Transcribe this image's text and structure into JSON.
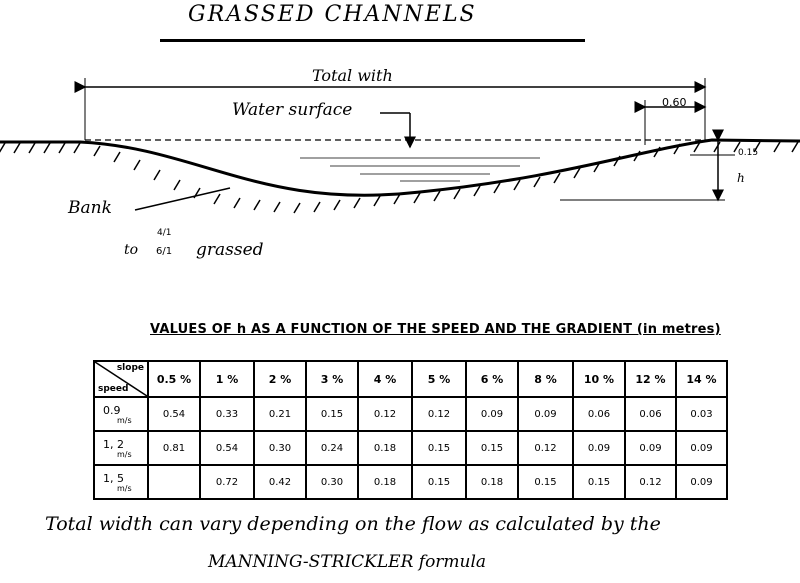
{
  "title": "GRASSED CHANNELS",
  "diagram": {
    "total_width_label": "Total with",
    "water_surface_label": "Water surface",
    "freeboard_label": "0.60",
    "freeboard_height_label": "0.15",
    "depth_label": "h",
    "bank_label": "Bank",
    "slope_top": "4/1",
    "slope_prefix": "to",
    "slope_bottom": "6/1",
    "slope_suffix": "grassed"
  },
  "table": {
    "heading": "VALUES OF h AS A FUNCTION OF THE SPEED AND THE GRADIENT (in metres)",
    "corner_slope": "slope",
    "corner_speed": "speed",
    "columns": [
      "0.5 %",
      "1 %",
      "2 %",
      "3 %",
      "4 %",
      "5 %",
      "6 %",
      "8 %",
      "10 %",
      "12 %",
      "14 %"
    ],
    "rows": [
      {
        "speed": "0.9",
        "unit": "m/s",
        "values": [
          "0.54",
          "0.33",
          "0.21",
          "0.15",
          "0.12",
          "0.12",
          "0.09",
          "0.09",
          "0.06",
          "0.06",
          "0.03"
        ]
      },
      {
        "speed": "1, 2",
        "unit": "m/s",
        "values": [
          "0.81",
          "0.54",
          "0.30",
          "0.24",
          "0.18",
          "0.15",
          "0.15",
          "0.12",
          "0.09",
          "0.09",
          "0.09"
        ]
      },
      {
        "speed": "1, 5",
        "unit": "m/s",
        "values": [
          "",
          "0.72",
          "0.42",
          "0.30",
          "0.18",
          "0.15",
          "0.18",
          "0.15",
          "0.15",
          "0.12",
          "0.09"
        ]
      }
    ]
  },
  "footnote": {
    "line1": "Total width can vary depending on the flow as calculated by the",
    "line2": "MANNING-STRICKLER formula"
  }
}
